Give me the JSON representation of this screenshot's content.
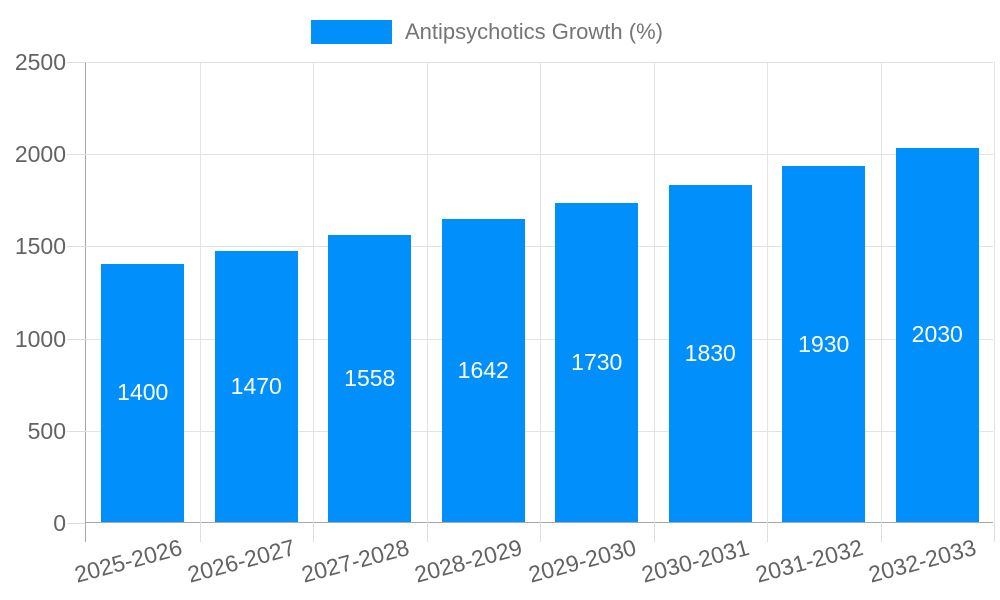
{
  "chart_data": {
    "type": "bar",
    "categories": [
      "2025-2026",
      "2026-2027",
      "2027-2028",
      "2028-2029",
      "2029-2030",
      "2030-2031",
      "2031-2032",
      "2032-2033"
    ],
    "series": [
      {
        "name": "Antipsychotics Growth (%)",
        "values": [
          1400,
          1470,
          1558,
          1642,
          1730,
          1830,
          1930,
          2030
        ]
      }
    ],
    "title": "",
    "xlabel": "",
    "ylabel": "",
    "ylim": [
      0,
      2500
    ],
    "yticks": [
      0,
      500,
      1000,
      1500,
      2000,
      2500
    ],
    "grid": true,
    "legend_position": "top",
    "x_tick_rotation_deg": -15,
    "bar_value_labels_inside": true,
    "colors": {
      "bar": "#008FFB",
      "bar_label": "#ffffff",
      "grid": "#e3e3e3",
      "tick": "#dedede",
      "axis": "#a8a8a8",
      "tick_label": "#636363",
      "legend_text": "#757575",
      "background": "#ffffff"
    }
  }
}
